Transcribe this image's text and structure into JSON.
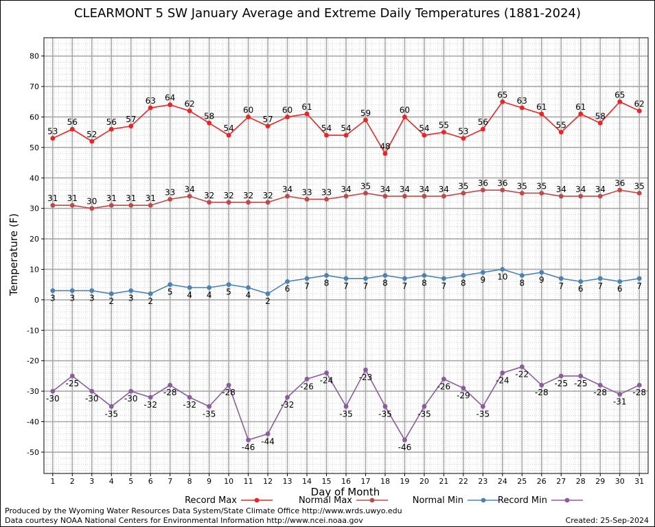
{
  "chart_data": {
    "type": "line",
    "title": "CLEARMONT 5 SW January Average and Extreme Daily Temperatures (1881-2024)",
    "xlabel": "Day of Month",
    "ylabel": "Temperature (F)",
    "ylim": [
      -57,
      86
    ],
    "yticks": [
      -50,
      -40,
      -30,
      -20,
      -10,
      0,
      10,
      20,
      30,
      40,
      50,
      60,
      70,
      80
    ],
    "x": [
      1,
      2,
      3,
      4,
      5,
      6,
      7,
      8,
      9,
      10,
      11,
      12,
      13,
      14,
      15,
      16,
      17,
      18,
      19,
      20,
      21,
      22,
      23,
      24,
      25,
      26,
      27,
      28,
      29,
      30,
      31
    ],
    "grid": true,
    "legend_position": "bottom",
    "series": [
      {
        "name": "Record Max",
        "color": "#ee2222",
        "label_pos": "above",
        "values": [
          53,
          56,
          52,
          56,
          57,
          63,
          64,
          62,
          58,
          54,
          60,
          57,
          60,
          61,
          54,
          54,
          59,
          48,
          60,
          54,
          55,
          53,
          56,
          65,
          63,
          61,
          55,
          61,
          58,
          65,
          62
        ]
      },
      {
        "name": "Normal Max",
        "color": "#c04848",
        "label_pos": "above",
        "values": [
          31,
          31,
          30,
          31,
          31,
          31,
          33,
          34,
          32,
          32,
          32,
          32,
          34,
          33,
          33,
          34,
          35,
          34,
          34,
          34,
          34,
          35,
          36,
          36,
          35,
          35,
          34,
          34,
          34,
          36,
          35
        ]
      },
      {
        "name": "Normal Min",
        "color": "#4a82b4",
        "label_pos": "below",
        "values": [
          3,
          3,
          3,
          2,
          3,
          2,
          5,
          4,
          4,
          5,
          4,
          2,
          6,
          7,
          8,
          7,
          7,
          8,
          7,
          8,
          7,
          8,
          9,
          10,
          8,
          9,
          7,
          6,
          7,
          6,
          7
        ]
      },
      {
        "name": "Record Min",
        "color": "#8a5c9c",
        "label_pos": "below",
        "values": [
          -30,
          -25,
          -30,
          -35,
          -30,
          -32,
          -28,
          -32,
          -35,
          -28,
          -46,
          -44,
          -32,
          -26,
          -24,
          -35,
          -23,
          -35,
          -46,
          -35,
          -26,
          -29,
          -35,
          -24,
          -22,
          -28,
          -25,
          -25,
          -28,
          -31,
          -28
        ]
      }
    ]
  },
  "legend": {
    "record_max": "Record Max",
    "normal_max": "Normal Max",
    "normal_min": "Normal Min",
    "record_min": "Record Min"
  },
  "footer": {
    "line1": "Produced by the Wyoming Water Resources Data System/State Climate Office http://www.wrds.uwyo.edu",
    "line2": "Data courtesy NOAA National Centers for Environmental Information http://www.ncei.noaa.gov",
    "created": "Created:  25-Sep-2024"
  }
}
